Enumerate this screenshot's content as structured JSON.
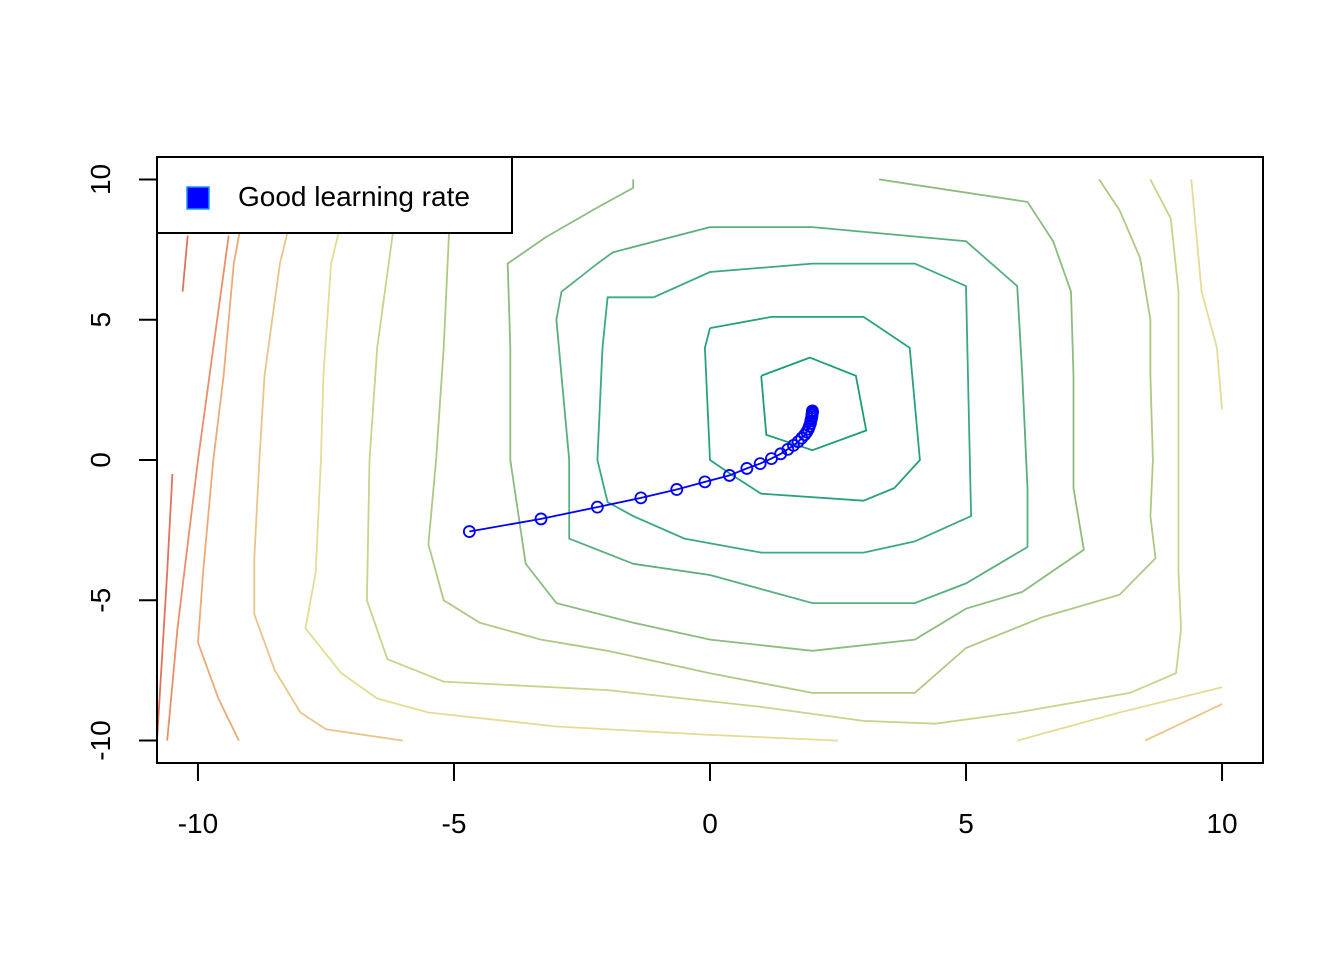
{
  "chart_data": {
    "type": "line",
    "title": "",
    "xlabel": "",
    "ylabel": "",
    "xlim": [
      -10.8,
      10.8
    ],
    "ylim": [
      -10.8,
      10.8
    ],
    "x_ticks": [
      -10,
      -5,
      0,
      5,
      10
    ],
    "y_ticks": [
      -10,
      -5,
      0,
      5,
      10
    ],
    "x_tick_labels": [
      "-10",
      "-5",
      "0",
      "5",
      "10"
    ],
    "y_tick_labels": [
      "-10",
      "-5",
      "0",
      "5",
      "10"
    ],
    "grid": false,
    "legend": {
      "position": "top-left",
      "entries": [
        {
          "label": "Good learning rate",
          "color": "#0000FF"
        }
      ]
    },
    "series": [
      {
        "name": "Good learning rate",
        "color": "#0000FF",
        "marker": "open-circle",
        "points": [
          [
            -4.7,
            -2.55
          ],
          [
            -3.3,
            -2.1
          ],
          [
            -2.2,
            -1.68
          ],
          [
            -1.35,
            -1.35
          ],
          [
            -0.65,
            -1.05
          ],
          [
            -0.1,
            -0.78
          ],
          [
            0.38,
            -0.55
          ],
          [
            0.72,
            -0.3
          ],
          [
            0.98,
            -0.13
          ],
          [
            1.2,
            0.05
          ],
          [
            1.38,
            0.22
          ],
          [
            1.52,
            0.38
          ],
          [
            1.63,
            0.52
          ],
          [
            1.72,
            0.65
          ],
          [
            1.79,
            0.78
          ],
          [
            1.85,
            0.9
          ],
          [
            1.89,
            1.0
          ],
          [
            1.92,
            1.1
          ],
          [
            1.94,
            1.2
          ],
          [
            1.96,
            1.3
          ],
          [
            1.97,
            1.4
          ],
          [
            1.98,
            1.48
          ],
          [
            1.99,
            1.55
          ],
          [
            1.99,
            1.62
          ],
          [
            2.0,
            1.68
          ],
          [
            2.0,
            1.72
          ],
          [
            2.0,
            1.75
          ]
        ]
      }
    ],
    "contours": [
      {
        "color": "#1B9E77",
        "points": [
          [
            1.0,
            3.0
          ],
          [
            1.95,
            3.65
          ],
          [
            2.85,
            3.0
          ],
          [
            3.05,
            1.05
          ],
          [
            2.0,
            0.35
          ],
          [
            1.1,
            0.9
          ],
          [
            1.0,
            3.0
          ]
        ]
      },
      {
        "color": "#29A17E",
        "points": [
          [
            0.0,
            4.7
          ],
          [
            1.2,
            5.1
          ],
          [
            3.0,
            5.1
          ],
          [
            3.9,
            4.0
          ],
          [
            4.1,
            0.0
          ],
          [
            3.6,
            -1.0
          ],
          [
            3.0,
            -1.45
          ],
          [
            1.0,
            -1.2
          ],
          [
            0.4,
            -0.5
          ],
          [
            0.0,
            0.0
          ],
          [
            -0.1,
            4.0
          ],
          [
            0.0,
            4.7
          ]
        ]
      },
      {
        "color": "#3BA883",
        "points": [
          [
            -1.1,
            5.8
          ],
          [
            0.0,
            6.7
          ],
          [
            2.0,
            7.0
          ],
          [
            4.0,
            7.0
          ],
          [
            5.0,
            6.2
          ],
          [
            5.05,
            2.0
          ],
          [
            5.1,
            -2.0
          ],
          [
            4.0,
            -2.9
          ],
          [
            3.0,
            -3.3
          ],
          [
            1.0,
            -3.3
          ],
          [
            -0.5,
            -2.8
          ],
          [
            -1.5,
            -2.0
          ],
          [
            -2.0,
            -1.5
          ],
          [
            -2.2,
            0.0
          ],
          [
            -2.1,
            4.0
          ],
          [
            -2.0,
            5.8
          ],
          [
            -1.1,
            5.8
          ]
        ]
      },
      {
        "color": "#58AE7E",
        "points": [
          [
            -2.2,
            7.0
          ],
          [
            -1.9,
            7.4
          ],
          [
            0.0,
            8.3
          ],
          [
            2.0,
            8.3
          ],
          [
            5.0,
            7.8
          ],
          [
            6.0,
            6.2
          ],
          [
            6.1,
            3.0
          ],
          [
            6.2,
            -1.0
          ],
          [
            6.2,
            -3.1
          ],
          [
            5.0,
            -4.4
          ],
          [
            4.0,
            -5.1
          ],
          [
            2.0,
            -5.1
          ],
          [
            0.0,
            -4.1
          ],
          [
            -1.5,
            -3.7
          ],
          [
            -2.75,
            -2.8
          ],
          [
            -2.75,
            0.0
          ],
          [
            -2.9,
            3.0
          ],
          [
            -3.0,
            5.0
          ],
          [
            -2.9,
            6.0
          ],
          [
            -2.2,
            7.0
          ]
        ]
      },
      {
        "color": "#8CBC7E",
        "points": [
          [
            -3.2,
            7.95
          ],
          [
            -2.2,
            9.0
          ],
          [
            -1.5,
            9.7
          ],
          [
            -1.5,
            10.0
          ]
        ]
      },
      {
        "color": "#8CBC7E",
        "points": [
          [
            3.3,
            10.0
          ],
          [
            6.2,
            9.2
          ],
          [
            6.7,
            7.8
          ],
          [
            7.05,
            6.0
          ],
          [
            7.1,
            3.0
          ],
          [
            7.1,
            -1.0
          ],
          [
            7.3,
            -3.2
          ],
          [
            6.1,
            -4.7
          ],
          [
            5.0,
            -5.3
          ],
          [
            4.0,
            -6.4
          ],
          [
            2.0,
            -6.8
          ],
          [
            0.0,
            -6.4
          ],
          [
            -1.5,
            -5.8
          ],
          [
            -3.0,
            -5.1
          ],
          [
            -3.6,
            -3.7
          ],
          [
            -3.9,
            0.0
          ],
          [
            -3.9,
            4.0
          ],
          [
            -3.95,
            7.0
          ],
          [
            -3.2,
            7.95
          ]
        ]
      },
      {
        "color": "#AFC883",
        "points": [
          [
            7.6,
            10.0
          ],
          [
            8.0,
            8.9
          ],
          [
            8.4,
            7.2
          ],
          [
            8.6,
            5.0
          ],
          [
            8.6,
            3.0
          ],
          [
            8.65,
            0.0
          ],
          [
            8.6,
            -2.0
          ],
          [
            8.7,
            -3.5
          ],
          [
            8.0,
            -4.8
          ],
          [
            6.5,
            -5.6
          ],
          [
            5.0,
            -6.7
          ],
          [
            4.0,
            -8.3
          ],
          [
            2.0,
            -8.3
          ],
          [
            0.0,
            -7.6
          ],
          [
            -2.0,
            -6.8
          ],
          [
            -3.3,
            -6.4
          ],
          [
            -4.5,
            -5.8
          ],
          [
            -5.2,
            -5.0
          ],
          [
            -5.5,
            -3.0
          ],
          [
            -5.35,
            0.0
          ],
          [
            -5.2,
            4.0
          ],
          [
            -5.1,
            8.0
          ],
          [
            -5.0,
            10.0
          ]
        ]
      },
      {
        "color": "#CBD28A",
        "points": [
          [
            8.6,
            10.0
          ],
          [
            9.0,
            8.6
          ],
          [
            9.15,
            6.0
          ],
          [
            9.15,
            3.0
          ],
          [
            9.15,
            0.0
          ],
          [
            9.15,
            -2.0
          ],
          [
            9.15,
            -4.0
          ],
          [
            9.2,
            -6.0
          ],
          [
            9.1,
            -7.6
          ],
          [
            8.2,
            -8.3
          ],
          [
            6.0,
            -9.0
          ],
          [
            4.4,
            -9.4
          ],
          [
            3.0,
            -9.3
          ],
          [
            1.0,
            -8.8
          ],
          [
            -2.0,
            -8.2
          ],
          [
            -5.2,
            -7.9
          ],
          [
            -6.3,
            -7.1
          ],
          [
            -6.7,
            -5.0
          ],
          [
            -6.65,
            0.0
          ],
          [
            -6.5,
            4.0
          ],
          [
            -6.2,
            8.0
          ],
          [
            -6.1,
            10.0
          ]
        ]
      },
      {
        "color": "#E3DC94",
        "points": [
          [
            9.4,
            10.0
          ],
          [
            9.6,
            6.0
          ],
          [
            9.9,
            4.0
          ],
          [
            10.0,
            1.8
          ]
        ]
      },
      {
        "color": "#E3DC94",
        "points": [
          [
            -7.0,
            10.0
          ],
          [
            -7.4,
            7.0
          ],
          [
            -7.55,
            3.0
          ],
          [
            -7.6,
            0.0
          ],
          [
            -7.7,
            -4.0
          ],
          [
            -7.9,
            -6.0
          ],
          [
            -7.2,
            -7.6
          ],
          [
            -6.5,
            -8.5
          ],
          [
            -5.5,
            -9.0
          ],
          [
            -3.0,
            -9.5
          ],
          [
            0.0,
            -9.8
          ],
          [
            2.5,
            -10.0
          ]
        ]
      },
      {
        "color": "#E3DC94",
        "points": [
          [
            6.0,
            -10.0
          ],
          [
            8.0,
            -9.0
          ],
          [
            10.0,
            -8.1
          ]
        ]
      },
      {
        "color": "#E9C58A",
        "points": [
          [
            -8.0,
            10.0
          ],
          [
            -8.4,
            7.0
          ],
          [
            -8.7,
            3.0
          ],
          [
            -8.8,
            0.0
          ],
          [
            -8.9,
            -3.5
          ],
          [
            -8.9,
            -5.5
          ],
          [
            -8.5,
            -7.5
          ],
          [
            -8.0,
            -9.0
          ],
          [
            -7.5,
            -9.6
          ],
          [
            -6.0,
            -10.0
          ]
        ]
      },
      {
        "color": "#E9C58A",
        "points": [
          [
            8.5,
            -10.0
          ],
          [
            10.0,
            -8.7
          ]
        ]
      },
      {
        "color": "#EBAA78",
        "points": [
          [
            -9.0,
            10.0
          ],
          [
            -9.3,
            7.0
          ],
          [
            -9.5,
            3.0
          ],
          [
            -9.7,
            0.0
          ],
          [
            -9.9,
            -4.0
          ],
          [
            -10.0,
            -6.5
          ],
          [
            -9.6,
            -8.5
          ],
          [
            -9.2,
            -10.0
          ]
        ]
      },
      {
        "color": "#E8906A",
        "points": [
          [
            -9.4,
            8.0
          ],
          [
            -9.7,
            4.0
          ],
          [
            -10.0,
            0.0
          ],
          [
            -10.2,
            -3.0
          ],
          [
            -10.4,
            -6.0
          ],
          [
            -10.5,
            -8.0
          ],
          [
            -10.6,
            -10.0
          ]
        ]
      },
      {
        "color": "#E0735A",
        "points": [
          [
            -10.2,
            8.0
          ],
          [
            -10.3,
            6.0
          ]
        ]
      },
      {
        "color": "#E0735A",
        "points": [
          [
            -10.5,
            -0.5
          ],
          [
            -10.6,
            -4.0
          ],
          [
            -10.7,
            -7.0
          ],
          [
            -10.8,
            -10.0
          ]
        ]
      }
    ]
  }
}
